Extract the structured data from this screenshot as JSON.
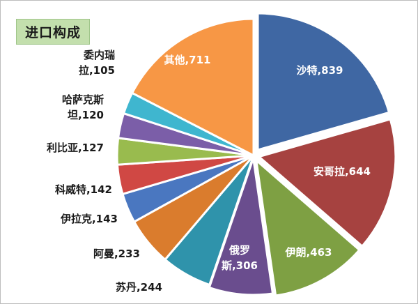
{
  "chart_data": {
    "type": "pie",
    "title": "进口构成",
    "slices": [
      {
        "label_lines": [
          "沙特,839"
        ],
        "value": 839,
        "color": "#3f67a3"
      },
      {
        "label_lines": [
          "安哥拉,644"
        ],
        "value": 644,
        "color": "#a64240"
      },
      {
        "label_lines": [
          "伊朗,463"
        ],
        "value": 463,
        "color": "#7ea043"
      },
      {
        "label_lines": [
          "俄罗",
          "斯,306"
        ],
        "value": 306,
        "color": "#6a4d8e"
      },
      {
        "label_lines": [
          "苏丹,244"
        ],
        "value": 244,
        "color": "#2f93ab"
      },
      {
        "label_lines": [
          "阿曼,233"
        ],
        "value": 233,
        "color": "#da7c2d"
      },
      {
        "label_lines": [
          "伊拉克,143"
        ],
        "value": 143,
        "color": "#4a77c0"
      },
      {
        "label_lines": [
          "科威特,142"
        ],
        "value": 142,
        "color": "#d04844"
      },
      {
        "label_lines": [
          "利比亚,127"
        ],
        "value": 127,
        "color": "#99bb4e"
      },
      {
        "label_lines": [
          "哈萨克斯",
          "坦,120"
        ],
        "value": 120,
        "color": "#7b5ea8"
      },
      {
        "label_lines": [
          "委内瑞",
          "拉,105"
        ],
        "value": 105,
        "color": "#3fb6cf"
      },
      {
        "label_lines": [
          "其他,711"
        ],
        "value": 711,
        "color": "#f79745"
      }
    ]
  }
}
